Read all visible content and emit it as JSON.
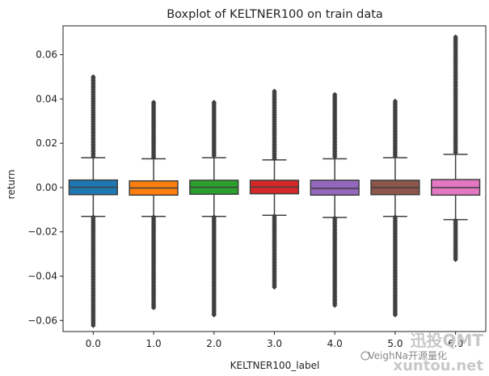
{
  "chart_data": {
    "type": "boxplot",
    "title": "Boxplot of KELTNER100 on train data",
    "xlabel": "KELTNER100_label",
    "ylabel": "return",
    "ylim": [
      -0.065,
      0.073
    ],
    "yticks": [
      -0.06,
      -0.04,
      -0.02,
      0.0,
      0.02,
      0.04,
      0.06
    ],
    "ytick_labels": [
      "−0.06",
      "−0.04",
      "−0.02",
      "0.00",
      "0.02",
      "0.04",
      "0.06"
    ],
    "grid": false,
    "categories": [
      "0.0",
      "1.0",
      "2.0",
      "3.0",
      "4.0",
      "5.0",
      "6.0"
    ],
    "series": [
      {
        "color": "#1f77b4",
        "q1": -0.0032,
        "median": 0.0001,
        "q3": 0.0034,
        "whislo": -0.013,
        "whishi": 0.0135,
        "fliermin": -0.063,
        "fliermax": 0.05
      },
      {
        "color": "#ff7f0e",
        "q1": -0.0034,
        "median": -0.0002,
        "q3": 0.003,
        "whislo": -0.013,
        "whishi": 0.013,
        "fliermin": -0.055,
        "fliermax": 0.0385
      },
      {
        "color": "#2ca02c",
        "q1": -0.003,
        "median": 0.0001,
        "q3": 0.0033,
        "whislo": -0.013,
        "whishi": 0.0135,
        "fliermin": -0.0575,
        "fliermax": 0.0385
      },
      {
        "color": "#d62728",
        "q1": -0.0028,
        "median": 0.0002,
        "q3": 0.0033,
        "whislo": -0.0125,
        "whishi": 0.0125,
        "fliermin": -0.0455,
        "fliermax": 0.0435
      },
      {
        "color": "#9467bd",
        "q1": -0.0034,
        "median": -0.0004,
        "q3": 0.0033,
        "whislo": -0.0135,
        "whishi": 0.013,
        "fliermin": -0.0535,
        "fliermax": 0.042
      },
      {
        "color": "#8c564b",
        "q1": -0.0032,
        "median": 0.0,
        "q3": 0.0033,
        "whislo": -0.013,
        "whishi": 0.0135,
        "fliermin": -0.058,
        "fliermax": 0.039
      },
      {
        "color": "#e377c2",
        "q1": -0.0034,
        "median": 0.0,
        "q3": 0.0036,
        "whislo": -0.0145,
        "whishi": 0.015,
        "fliermin": -0.033,
        "fliermax": 0.068
      }
    ]
  },
  "watermark": {
    "line1": "迅投QMT",
    "line2": "VeighNa开源量化",
    "line3": "xuntou.net"
  }
}
